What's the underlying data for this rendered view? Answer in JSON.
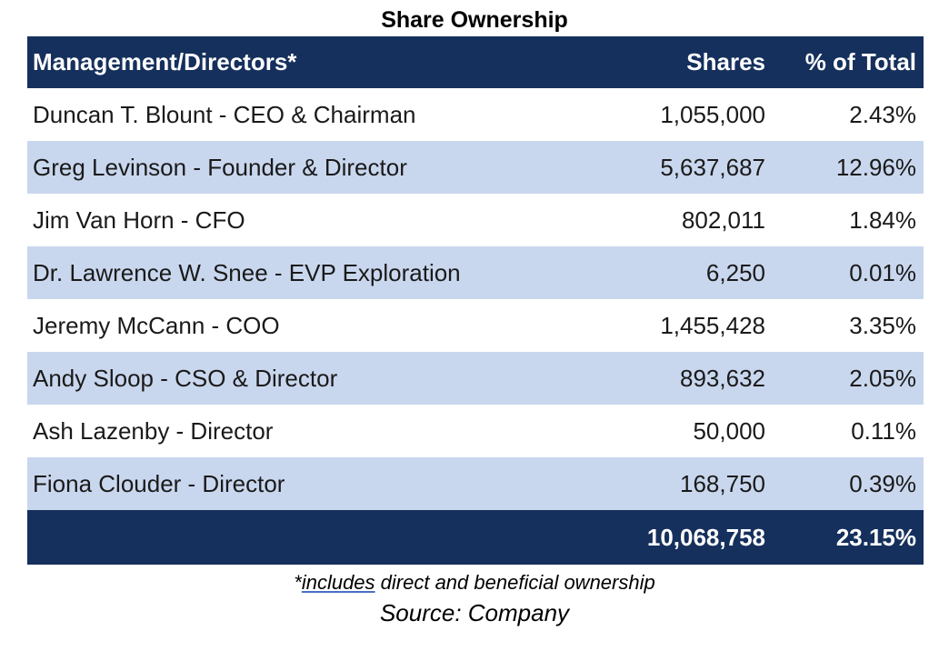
{
  "title": "Share Ownership",
  "table": {
    "headers": {
      "name": "Management/Directors*",
      "shares": "Shares",
      "pct": "% of Total"
    },
    "rows": [
      {
        "name": "Duncan T. Blount - CEO & Chairman",
        "shares": "1,055,000",
        "pct": "2.43%"
      },
      {
        "name": "Greg Levinson - Founder & Director",
        "shares": "5,637,687",
        "pct": "12.96%"
      },
      {
        "name": "Jim Van Horn - CFO",
        "shares": "802,011",
        "pct": "1.84%"
      },
      {
        "name": "Dr. Lawrence W. Snee - EVP Exploration",
        "shares": "6,250",
        "pct": "0.01%"
      },
      {
        "name": "Jeremy McCann - COO",
        "shares": "1,455,428",
        "pct": "3.35%"
      },
      {
        "name": "Andy Sloop - CSO & Director",
        "shares": "893,632",
        "pct": "2.05%"
      },
      {
        "name": "Ash Lazenby - Director",
        "shares": "50,000",
        "pct": "0.11%"
      },
      {
        "name": "Fiona Clouder - Director",
        "shares": "168,750",
        "pct": "0.39%"
      }
    ],
    "total": {
      "name": "",
      "shares": "10,068,758",
      "pct": "23.15%"
    }
  },
  "footnote": {
    "prefix": "*",
    "underlined": "includes",
    "suffix": " direct and beneficial ownership"
  },
  "source": "Source: Company",
  "colors": {
    "header_bg": "#15305c",
    "stripe_bg": "#c9d7ee",
    "row_bg": "#ffffff"
  }
}
